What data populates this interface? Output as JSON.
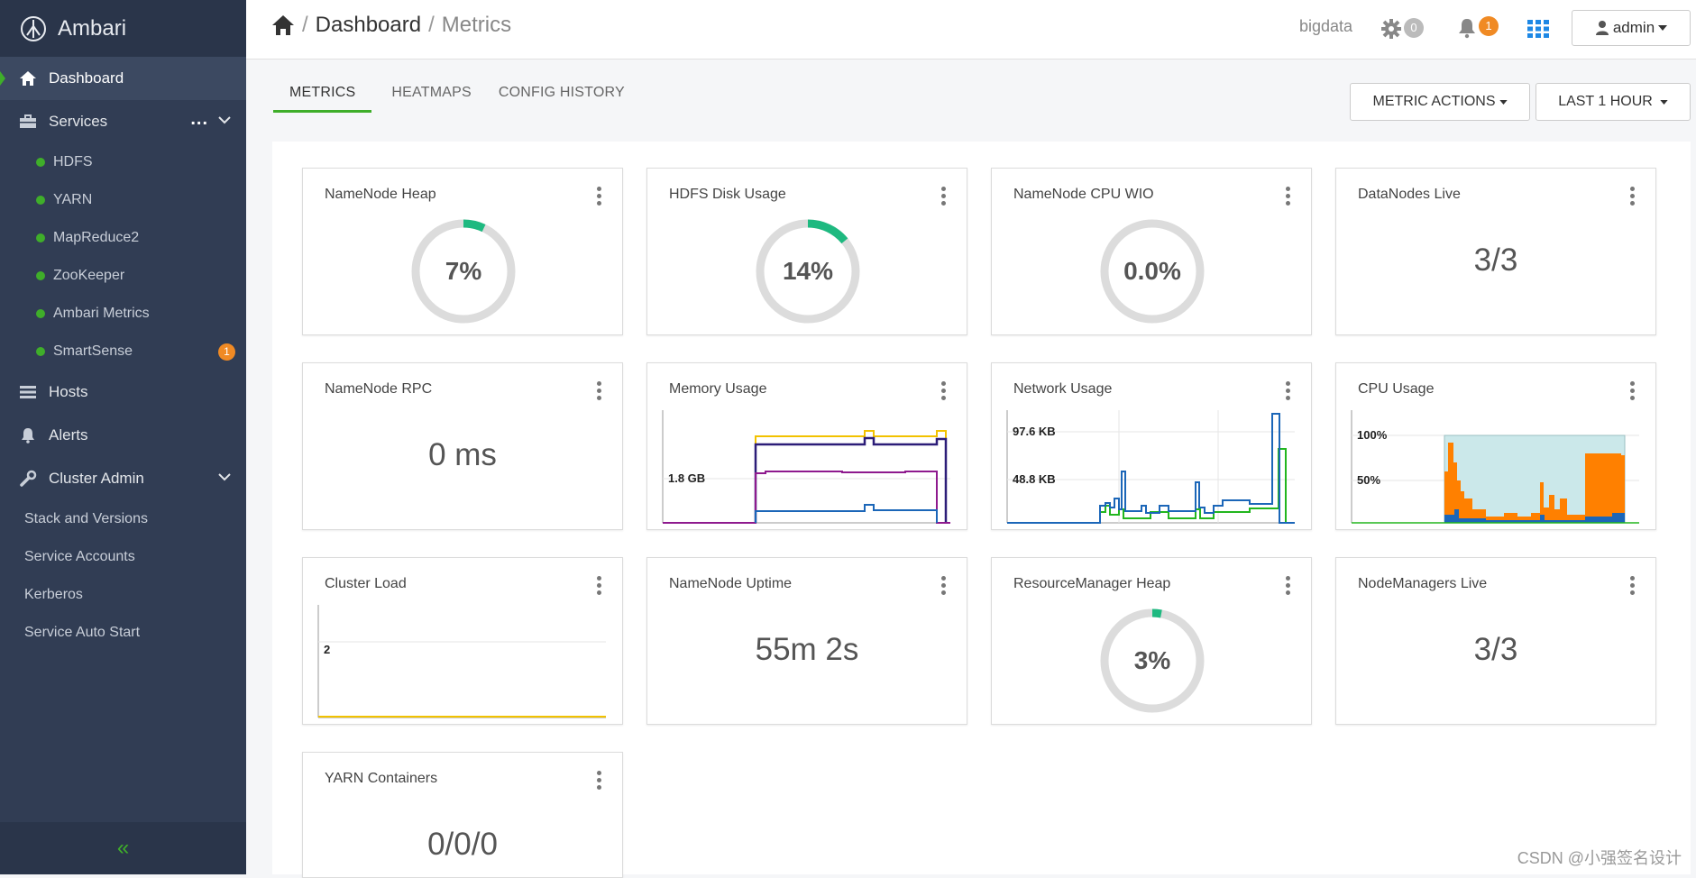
{
  "sidebar": {
    "brand": "Ambari",
    "dashboard": "Dashboard",
    "services": "Services",
    "services_more": "...",
    "service_items": [
      {
        "label": "HDFS"
      },
      {
        "label": "YARN"
      },
      {
        "label": "MapReduce2"
      },
      {
        "label": "ZooKeeper"
      },
      {
        "label": "Ambari Metrics"
      },
      {
        "label": "SmartSense",
        "badge": "1"
      }
    ],
    "hosts": "Hosts",
    "alerts": "Alerts",
    "cluster_admin": "Cluster Admin",
    "admin_items": [
      "Stack and Versions",
      "Service Accounts",
      "Kerberos",
      "Service Auto Start"
    ],
    "collapse": "«"
  },
  "header": {
    "crumb_1": "Dashboard",
    "crumb_2": "Metrics",
    "separator": "/",
    "cluster": "bigdata",
    "ops_count": "0",
    "alert_count": "1",
    "user": "admin"
  },
  "tabs": [
    "METRICS",
    "HEATMAPS",
    "CONFIG HISTORY"
  ],
  "actions": {
    "metric_actions": "METRIC ACTIONS",
    "time_range": "LAST 1 HOUR"
  },
  "widgets": {
    "namenode_heap": {
      "title": "NameNode Heap",
      "value": "7%",
      "fraction": 0.07
    },
    "hdfs_disk": {
      "title": "HDFS Disk Usage",
      "value": "14%",
      "fraction": 0.14
    },
    "namenode_cpu": {
      "title": "NameNode CPU WIO",
      "value": "0.0%",
      "fraction": 0.0
    },
    "datanodes_live": {
      "title": "DataNodes Live",
      "value": "3/3"
    },
    "namenode_rpc": {
      "title": "NameNode RPC",
      "value": "0 ms"
    },
    "memory_usage": {
      "title": "Memory Usage",
      "axis_label": "1.8 GB"
    },
    "network_usage": {
      "title": "Network Usage",
      "axis_labels": [
        "97.6 KB",
        "48.8 KB"
      ]
    },
    "cpu_usage": {
      "title": "CPU Usage",
      "axis_labels": [
        "100%",
        "50%"
      ]
    },
    "cluster_load": {
      "title": "Cluster Load",
      "axis_label": "2"
    },
    "namenode_uptime": {
      "title": "NameNode Uptime",
      "value": "55m 2s"
    },
    "rm_heap": {
      "title": "ResourceManager Heap",
      "value": "3%",
      "fraction": 0.03
    },
    "nodemanagers_live": {
      "title": "NodeManagers Live",
      "value": "3/3"
    },
    "yarn_containers": {
      "title": "YARN Containers",
      "value": "0/0/0"
    }
  },
  "colors": {
    "accent": "#3fae2a",
    "gauge": "#1eb980",
    "badge": "#f08a24"
  },
  "watermark": "CSDN @小强签名设计"
}
